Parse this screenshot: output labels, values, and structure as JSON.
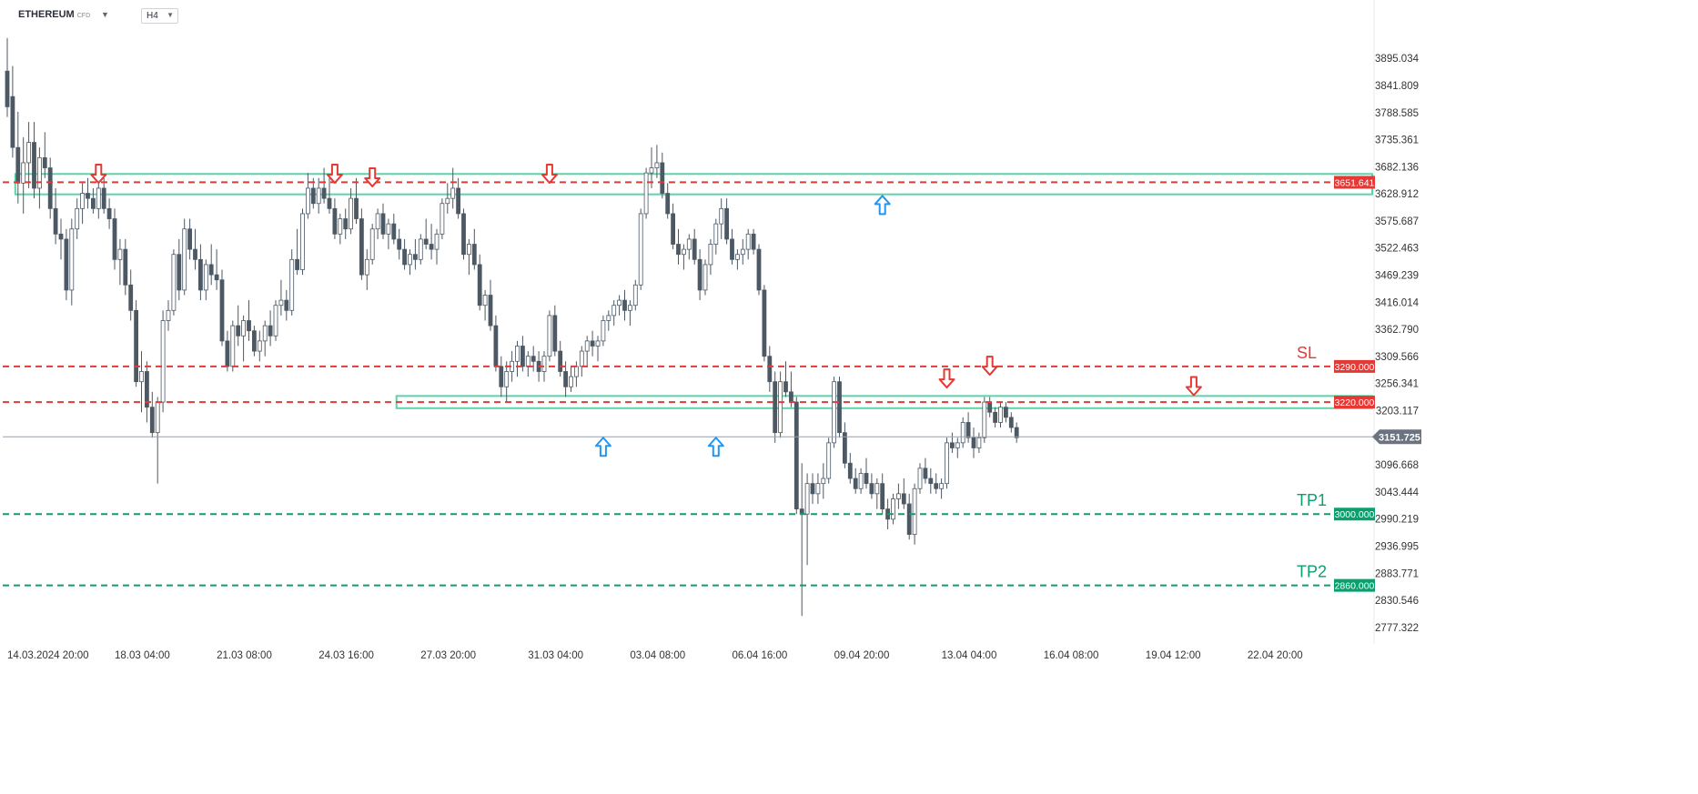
{
  "header": {
    "symbol": "ETHEREUM",
    "symbol_type": "CFD",
    "timeframe": "H4"
  },
  "colors": {
    "bull": "#ffffff",
    "bear": "#4c5864",
    "resistance": "#e53935",
    "support_target": "#0aa06e",
    "zone": "#5fd3a8",
    "down_arrow": "#e53935",
    "up_arrow": "#2196f3",
    "current": "#6b7280"
  },
  "chart_data": {
    "type": "candlestick",
    "instrument": "ETHEREUM CFD",
    "timeframe": "H4",
    "y_range": [
      2745,
      3965
    ],
    "y_ticks": [
      3895.034,
      3841.809,
      3788.585,
      3735.361,
      3682.136,
      3628.912,
      3575.687,
      3522.463,
      3469.239,
      3416.014,
      3362.79,
      3309.566,
      3256.341,
      3203.117,
      3096.668,
      3043.444,
      2990.219,
      2936.995,
      2883.771,
      2830.546,
      2777.322
    ],
    "y_tick_labels": [
      "3895.034",
      "3841.809",
      "3788.585",
      "3735.361",
      "3682.136",
      "3628.912",
      "3575.687",
      "3522.463",
      "3469.239",
      "3416.014",
      "3362.790",
      "3309.566",
      "3256.341",
      "3203.117",
      "3096.668",
      "3043.444",
      "2990.219",
      "2936.995",
      "2883.771",
      "2830.546",
      "2777.322"
    ],
    "x_labels": [
      {
        "label": "14.03.2024  20:00",
        "index": 0
      },
      {
        "label": "18.03  04:00",
        "index": 20
      },
      {
        "label": "21.03  08:00",
        "index": 39
      },
      {
        "label": "24.03  16:00",
        "index": 58
      },
      {
        "label": "27.03  20:00",
        "index": 77
      },
      {
        "label": "31.03  04:00",
        "index": 97
      },
      {
        "label": "03.04  08:00",
        "index": 116
      },
      {
        "label": "06.04  16:00",
        "index": 135
      },
      {
        "label": "09.04  20:00",
        "index": 154
      },
      {
        "label": "13.04  04:00",
        "index": 174
      },
      {
        "label": "16.04  08:00",
        "index": 193
      },
      {
        "label": "19.04  12:00",
        "index": 212
      },
      {
        "label": "22.04  20:00",
        "index": 231
      }
    ],
    "candles": [
      [
        3870,
        3935,
        3780,
        3800
      ],
      [
        3820,
        3880,
        3700,
        3720
      ],
      [
        3720,
        3790,
        3610,
        3650
      ],
      [
        3650,
        3740,
        3590,
        3690
      ],
      [
        3690,
        3770,
        3640,
        3730
      ],
      [
        3730,
        3770,
        3620,
        3640
      ],
      [
        3640,
        3720,
        3600,
        3700
      ],
      [
        3700,
        3750,
        3660,
        3680
      ],
      [
        3680,
        3700,
        3580,
        3600
      ],
      [
        3600,
        3640,
        3530,
        3550
      ],
      [
        3550,
        3580,
        3500,
        3540
      ],
      [
        3540,
        3560,
        3420,
        3440
      ],
      [
        3440,
        3580,
        3410,
        3560
      ],
      [
        3560,
        3620,
        3540,
        3600
      ],
      [
        3600,
        3650,
        3570,
        3630
      ],
      [
        3630,
        3660,
        3600,
        3620
      ],
      [
        3620,
        3640,
        3590,
        3600
      ],
      [
        3600,
        3650,
        3580,
        3640
      ],
      [
        3640,
        3660,
        3590,
        3600
      ],
      [
        3600,
        3620,
        3560,
        3580
      ],
      [
        3580,
        3600,
        3480,
        3500
      ],
      [
        3500,
        3540,
        3450,
        3520
      ],
      [
        3520,
        3540,
        3430,
        3450
      ],
      [
        3450,
        3480,
        3380,
        3400
      ],
      [
        3400,
        3420,
        3250,
        3260
      ],
      [
        3260,
        3320,
        3200,
        3280
      ],
      [
        3280,
        3300,
        3180,
        3210
      ],
      [
        3210,
        3240,
        3150,
        3160
      ],
      [
        3160,
        3230,
        3060,
        3220
      ],
      [
        3220,
        3400,
        3200,
        3380
      ],
      [
        3380,
        3420,
        3360,
        3400
      ],
      [
        3400,
        3520,
        3390,
        3510
      ],
      [
        3510,
        3540,
        3420,
        3440
      ],
      [
        3440,
        3580,
        3430,
        3560
      ],
      [
        3560,
        3580,
        3500,
        3520
      ],
      [
        3520,
        3560,
        3480,
        3500
      ],
      [
        3500,
        3530,
        3420,
        3440
      ],
      [
        3440,
        3500,
        3420,
        3490
      ],
      [
        3490,
        3530,
        3450,
        3470
      ],
      [
        3470,
        3520,
        3440,
        3460
      ],
      [
        3460,
        3480,
        3330,
        3340
      ],
      [
        3340,
        3360,
        3280,
        3290
      ],
      [
        3290,
        3380,
        3280,
        3370
      ],
      [
        3370,
        3410,
        3330,
        3350
      ],
      [
        3350,
        3390,
        3300,
        3380
      ],
      [
        3380,
        3420,
        3340,
        3360
      ],
      [
        3360,
        3370,
        3310,
        3320
      ],
      [
        3320,
        3360,
        3300,
        3340
      ],
      [
        3340,
        3380,
        3310,
        3370
      ],
      [
        3370,
        3400,
        3330,
        3350
      ],
      [
        3350,
        3420,
        3340,
        3410
      ],
      [
        3410,
        3460,
        3390,
        3420
      ],
      [
        3420,
        3440,
        3380,
        3400
      ],
      [
        3400,
        3520,
        3390,
        3500
      ],
      [
        3500,
        3560,
        3470,
        3480
      ],
      [
        3480,
        3600,
        3470,
        3590
      ],
      [
        3590,
        3670,
        3580,
        3640
      ],
      [
        3640,
        3660,
        3600,
        3610
      ],
      [
        3610,
        3660,
        3590,
        3640
      ],
      [
        3640,
        3680,
        3610,
        3620
      ],
      [
        3620,
        3660,
        3590,
        3600
      ],
      [
        3600,
        3620,
        3540,
        3550
      ],
      [
        3550,
        3590,
        3530,
        3580
      ],
      [
        3580,
        3600,
        3540,
        3560
      ],
      [
        3560,
        3640,
        3550,
        3620
      ],
      [
        3620,
        3660,
        3570,
        3580
      ],
      [
        3580,
        3600,
        3460,
        3470
      ],
      [
        3470,
        3520,
        3440,
        3500
      ],
      [
        3500,
        3570,
        3490,
        3560
      ],
      [
        3560,
        3600,
        3540,
        3590
      ],
      [
        3590,
        3610,
        3540,
        3550
      ],
      [
        3550,
        3580,
        3520,
        3570
      ],
      [
        3570,
        3590,
        3530,
        3540
      ],
      [
        3540,
        3560,
        3500,
        3520
      ],
      [
        3520,
        3540,
        3480,
        3490
      ],
      [
        3490,
        3520,
        3470,
        3510
      ],
      [
        3510,
        3540,
        3480,
        3500
      ],
      [
        3500,
        3550,
        3490,
        3540
      ],
      [
        3540,
        3580,
        3520,
        3530
      ],
      [
        3530,
        3570,
        3500,
        3520
      ],
      [
        3520,
        3560,
        3490,
        3550
      ],
      [
        3550,
        3620,
        3540,
        3610
      ],
      [
        3610,
        3650,
        3590,
        3620
      ],
      [
        3620,
        3680,
        3600,
        3640
      ],
      [
        3640,
        3660,
        3580,
        3590
      ],
      [
        3590,
        3600,
        3500,
        3510
      ],
      [
        3510,
        3540,
        3470,
        3530
      ],
      [
        3530,
        3560,
        3480,
        3490
      ],
      [
        3490,
        3510,
        3400,
        3410
      ],
      [
        3410,
        3440,
        3380,
        3430
      ],
      [
        3430,
        3460,
        3360,
        3370
      ],
      [
        3370,
        3390,
        3280,
        3290
      ],
      [
        3290,
        3310,
        3230,
        3250
      ],
      [
        3250,
        3300,
        3220,
        3280
      ],
      [
        3280,
        3320,
        3260,
        3300
      ],
      [
        3300,
        3340,
        3270,
        3330
      ],
      [
        3330,
        3350,
        3280,
        3290
      ],
      [
        3290,
        3320,
        3270,
        3310
      ],
      [
        3310,
        3330,
        3280,
        3300
      ],
      [
        3300,
        3320,
        3260,
        3280
      ],
      [
        3280,
        3320,
        3260,
        3310
      ],
      [
        3310,
        3400,
        3300,
        3390
      ],
      [
        3390,
        3410,
        3310,
        3320
      ],
      [
        3320,
        3340,
        3270,
        3280
      ],
      [
        3280,
        3300,
        3230,
        3250
      ],
      [
        3250,
        3290,
        3240,
        3270
      ],
      [
        3270,
        3300,
        3250,
        3290
      ],
      [
        3290,
        3330,
        3270,
        3320
      ],
      [
        3320,
        3350,
        3290,
        3340
      ],
      [
        3340,
        3360,
        3310,
        3330
      ],
      [
        3330,
        3350,
        3300,
        3340
      ],
      [
        3340,
        3390,
        3330,
        3380
      ],
      [
        3380,
        3400,
        3360,
        3390
      ],
      [
        3390,
        3420,
        3370,
        3410
      ],
      [
        3410,
        3430,
        3390,
        3420
      ],
      [
        3420,
        3440,
        3380,
        3400
      ],
      [
        3400,
        3420,
        3370,
        3410
      ],
      [
        3410,
        3460,
        3400,
        3450
      ],
      [
        3450,
        3600,
        3440,
        3590
      ],
      [
        3590,
        3680,
        3580,
        3670
      ],
      [
        3670,
        3720,
        3640,
        3680
      ],
      [
        3680,
        3725,
        3660,
        3690
      ],
      [
        3690,
        3710,
        3620,
        3630
      ],
      [
        3630,
        3650,
        3580,
        3590
      ],
      [
        3590,
        3610,
        3520,
        3530
      ],
      [
        3530,
        3560,
        3490,
        3510
      ],
      [
        3510,
        3530,
        3480,
        3520
      ],
      [
        3520,
        3550,
        3500,
        3540
      ],
      [
        3540,
        3560,
        3490,
        3500
      ],
      [
        3500,
        3520,
        3420,
        3440
      ],
      [
        3440,
        3500,
        3430,
        3490
      ],
      [
        3490,
        3540,
        3470,
        3530
      ],
      [
        3530,
        3580,
        3510,
        3570
      ],
      [
        3570,
        3620,
        3540,
        3600
      ],
      [
        3600,
        3620,
        3530,
        3540
      ],
      [
        3540,
        3560,
        3490,
        3500
      ],
      [
        3500,
        3520,
        3480,
        3510
      ],
      [
        3510,
        3540,
        3490,
        3520
      ],
      [
        3520,
        3560,
        3500,
        3550
      ],
      [
        3550,
        3560,
        3510,
        3520
      ],
      [
        3520,
        3530,
        3430,
        3440
      ],
      [
        3440,
        3450,
        3300,
        3310
      ],
      [
        3310,
        3330,
        3240,
        3260
      ],
      [
        3260,
        3280,
        3140,
        3160
      ],
      [
        3160,
        3280,
        3150,
        3260
      ],
      [
        3260,
        3300,
        3230,
        3240
      ],
      [
        3240,
        3280,
        3210,
        3220
      ],
      [
        3220,
        3230,
        3000,
        3010
      ],
      [
        3010,
        3100,
        2800,
        3000
      ],
      [
        3000,
        3080,
        2900,
        3060
      ],
      [
        3060,
        3080,
        3020,
        3040
      ],
      [
        3040,
        3080,
        3020,
        3060
      ],
      [
        3060,
        3100,
        3030,
        3070
      ],
      [
        3070,
        3150,
        3060,
        3140
      ],
      [
        3140,
        3270,
        3130,
        3260
      ],
      [
        3260,
        3270,
        3150,
        3160
      ],
      [
        3160,
        3180,
        3090,
        3100
      ],
      [
        3100,
        3120,
        3060,
        3070
      ],
      [
        3070,
        3090,
        3040,
        3050
      ],
      [
        3050,
        3090,
        3040,
        3080
      ],
      [
        3080,
        3110,
        3050,
        3060
      ],
      [
        3060,
        3080,
        3030,
        3040
      ],
      [
        3040,
        3070,
        3010,
        3060
      ],
      [
        3060,
        3080,
        3000,
        3010
      ],
      [
        3010,
        3030,
        2970,
        2990
      ],
      [
        2990,
        3040,
        2980,
        3030
      ],
      [
        3030,
        3060,
        3010,
        3040
      ],
      [
        3040,
        3070,
        3010,
        3020
      ],
      [
        3020,
        3040,
        2950,
        2960
      ],
      [
        2960,
        3060,
        2940,
        3050
      ],
      [
        3050,
        3100,
        3040,
        3090
      ],
      [
        3090,
        3110,
        3060,
        3070
      ],
      [
        3070,
        3090,
        3040,
        3060
      ],
      [
        3060,
        3080,
        3040,
        3050
      ],
      [
        3050,
        3070,
        3030,
        3060
      ],
      [
        3060,
        3150,
        3050,
        3140
      ],
      [
        3140,
        3160,
        3120,
        3130
      ],
      [
        3130,
        3150,
        3110,
        3140
      ],
      [
        3140,
        3190,
        3130,
        3180
      ],
      [
        3180,
        3200,
        3140,
        3150
      ],
      [
        3150,
        3170,
        3110,
        3130
      ],
      [
        3130,
        3160,
        3120,
        3150
      ],
      [
        3150,
        3230,
        3140,
        3220
      ],
      [
        3220,
        3230,
        3190,
        3200
      ],
      [
        3200,
        3210,
        3170,
        3180
      ],
      [
        3180,
        3220,
        3170,
        3210
      ],
      [
        3210,
        3220,
        3180,
        3190
      ],
      [
        3190,
        3200,
        3160,
        3170
      ],
      [
        3170,
        3180,
        3140,
        3150
      ]
    ],
    "horizontal_lines": [
      {
        "value": 3651.641,
        "label": "3651.641",
        "style": "dashed",
        "color": "#e53935",
        "tag": ""
      },
      {
        "value": 3290.0,
        "label": "3290.000",
        "style": "dashed",
        "color": "#e53935",
        "tag": "SL"
      },
      {
        "value": 3220.0,
        "label": "3220.000",
        "style": "dashed",
        "color": "#e53935",
        "tag": ""
      },
      {
        "value": 3000.0,
        "label": "3000.000",
        "style": "dashed",
        "color": "#0aa06e",
        "tag": "TP1"
      },
      {
        "value": 2860.0,
        "label": "2860.000",
        "style": "dashed",
        "color": "#0aa06e",
        "tag": "TP2"
      }
    ],
    "current_price": {
      "value": 3151.725,
      "label": "3151.725"
    },
    "zones": [
      {
        "from_index": 2,
        "to_index": "end",
        "low": 3628,
        "high": 3668
      },
      {
        "from_index": 73,
        "to_index": "end",
        "low": 3208,
        "high": 3232
      }
    ],
    "markers": [
      {
        "type": "down",
        "index": 17,
        "value": 3672
      },
      {
        "type": "down",
        "index": 61,
        "value": 3672
      },
      {
        "type": "down",
        "index": 68,
        "value": 3665
      },
      {
        "type": "down",
        "index": 101,
        "value": 3672
      },
      {
        "type": "up",
        "index": 111,
        "value": 3150
      },
      {
        "type": "up",
        "index": 132,
        "value": 3150
      },
      {
        "type": "up",
        "index": 163,
        "value": 3625
      },
      {
        "type": "down",
        "index": 175,
        "value": 3270
      },
      {
        "type": "down",
        "index": 183,
        "value": 3295
      },
      {
        "type": "down",
        "index": 221,
        "value": 3255
      }
    ]
  }
}
